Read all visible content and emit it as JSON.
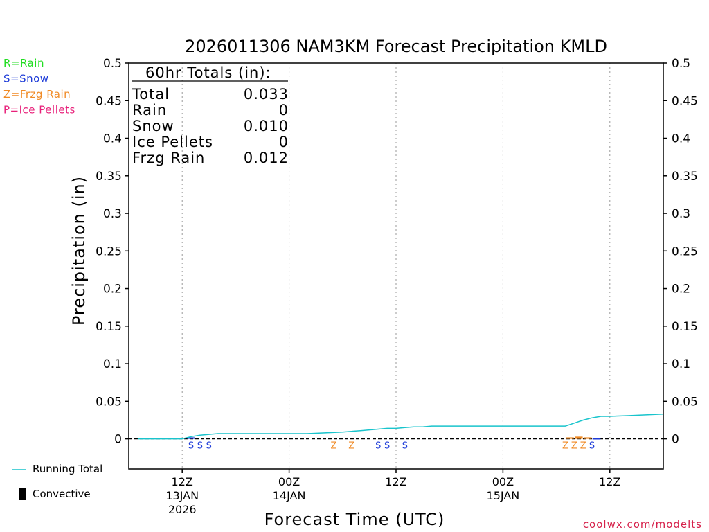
{
  "chart_data": {
    "type": "line",
    "title": "2026011306 NAM3KM Forecast Precipitation KMLD",
    "ylabel": "Precipitation (in)",
    "xlabel": "Forecast Time (UTC)",
    "ylim": [
      -0.04,
      0.5
    ],
    "yticks": [
      0,
      0.05,
      0.1,
      0.15,
      0.2,
      0.25,
      0.3,
      0.35,
      0.4,
      0.45,
      0.5
    ],
    "ytick_labels": [
      "0",
      "0.05",
      "0.1",
      "0.15",
      "0.2",
      "0.25",
      "0.3",
      "0.35",
      "0.4",
      "0.45",
      "0.5"
    ],
    "xlim_hours": [
      0,
      60
    ],
    "xticks": [
      {
        "hour": 6,
        "lines": [
          "12Z",
          "13JAN",
          "2026"
        ]
      },
      {
        "hour": 18,
        "lines": [
          "00Z",
          "14JAN"
        ]
      },
      {
        "hour": 30,
        "lines": [
          "12Z"
        ]
      },
      {
        "hour": 42,
        "lines": [
          "00Z",
          "15JAN"
        ]
      },
      {
        "hour": 54,
        "lines": [
          "12Z"
        ]
      }
    ],
    "series": [
      {
        "name": "Running Total",
        "color": "#19c4cc",
        "x": [
          1,
          2,
          3,
          4,
          5,
          6,
          7,
          8,
          9,
          10,
          12,
          14,
          16,
          18,
          20,
          22,
          24,
          25,
          26,
          27,
          28,
          29,
          30,
          31,
          32,
          33,
          34,
          35,
          36,
          38,
          40,
          42,
          44,
          46,
          47,
          48,
          49,
          50,
          51,
          52,
          53,
          54,
          56,
          58,
          60
        ],
        "y": [
          0.0,
          0.0,
          0.0,
          0.0,
          0.0,
          0.0,
          0.003,
          0.005,
          0.006,
          0.007,
          0.007,
          0.007,
          0.007,
          0.007,
          0.007,
          0.008,
          0.009,
          0.01,
          0.011,
          0.012,
          0.013,
          0.014,
          0.014,
          0.015,
          0.016,
          0.016,
          0.017,
          0.017,
          0.017,
          0.017,
          0.017,
          0.017,
          0.017,
          0.017,
          0.017,
          0.017,
          0.017,
          0.021,
          0.025,
          0.028,
          0.03,
          0.03,
          0.031,
          0.032,
          0.033
        ]
      }
    ],
    "precip_bars": [
      {
        "hour": 7,
        "type": "S",
        "value": 0.002,
        "color": "#1e3cd8"
      },
      {
        "hour": 49.5,
        "type": "Z",
        "value": 0.002,
        "color": "#f08a24"
      },
      {
        "hour": 50.5,
        "type": "Z",
        "value": 0.003,
        "color": "#f08a24"
      },
      {
        "hour": 51.5,
        "type": "Z",
        "value": 0.002,
        "color": "#f08a24"
      },
      {
        "hour": 52.5,
        "type": "S",
        "value": 0.001,
        "color": "#1e3cd8"
      }
    ],
    "ptype_marks": [
      {
        "hour": 7,
        "type": "S"
      },
      {
        "hour": 8,
        "type": "S"
      },
      {
        "hour": 9,
        "type": "S"
      },
      {
        "hour": 23,
        "type": "Z"
      },
      {
        "hour": 25,
        "type": "Z"
      },
      {
        "hour": 28,
        "type": "S"
      },
      {
        "hour": 29,
        "type": "S"
      },
      {
        "hour": 31,
        "type": "S"
      },
      {
        "hour": 49,
        "type": "Z"
      },
      {
        "hour": 50,
        "type": "Z"
      },
      {
        "hour": 51,
        "type": "Z"
      },
      {
        "hour": 52,
        "type": "S"
      }
    ],
    "ptype_colors": {
      "S": "#1e3cd8",
      "Z": "#f08a24"
    },
    "totals_box": {
      "header": "60hr Totals (in):",
      "rows": [
        {
          "label": "Total",
          "value": "0.033"
        },
        {
          "label": "Rain",
          "value": "0"
        },
        {
          "label": "Snow",
          "value": "0.010"
        },
        {
          "label": "Ice Pellets",
          "value": "0"
        },
        {
          "label": "Frzg Rain",
          "value": "0.012"
        }
      ]
    },
    "ptype_legend": [
      {
        "text": "R=Rain",
        "color": "#22dd22"
      },
      {
        "text": "S=Snow",
        "color": "#1e3cd8"
      },
      {
        "text": "Z=Frzg Rain",
        "color": "#f08a24"
      },
      {
        "text": "P=Ice Pellets",
        "color": "#e8207a"
      }
    ],
    "series_legend": [
      {
        "text": "Running Total",
        "kind": "line",
        "color": "#19c4cc"
      },
      {
        "text": "Convective",
        "kind": "bar",
        "color": "#000000"
      }
    ],
    "credit": "coolwx.com/modelts",
    "credit_color": "#d6204a"
  }
}
